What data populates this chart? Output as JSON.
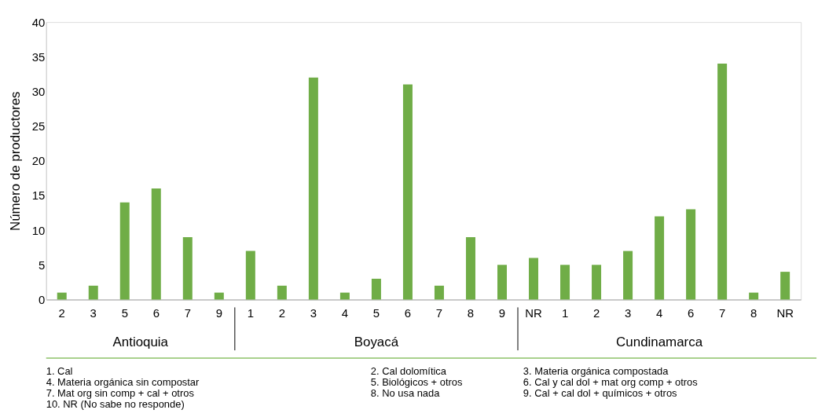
{
  "chart_data": {
    "type": "bar",
    "ylabel": "Número de productores",
    "categories": [
      "2",
      "3",
      "5",
      "6",
      "7",
      "9",
      "1",
      "2",
      "3",
      "4",
      "5",
      "6",
      "7",
      "8",
      "9",
      "NR",
      "1",
      "2",
      "3",
      "4",
      "6",
      "7",
      "8",
      "NR"
    ],
    "values": [
      1,
      2,
      14,
      16,
      9,
      1,
      7,
      2,
      32,
      1,
      3,
      31,
      2,
      9,
      5,
      6,
      5,
      5,
      7,
      12,
      13,
      34,
      1,
      4
    ],
    "color": "#70ad47",
    "ylim": [
      0,
      40
    ],
    "yticks": [
      0,
      5,
      10,
      15,
      20,
      25,
      30,
      35,
      40
    ],
    "grid": false,
    "annotations": [
      "Antioquia",
      "Boyacá",
      "Cundinamarca",
      "1. Cal",
      "2. Cal dolomítica",
      "3. Materia orgánica compostada",
      "4. Materia orgánica sin compostar",
      "5. Biológicos + otros",
      "6. Cal y cal dol + mat org comp + otros",
      "7. Mat org sin comp + cal + otros",
      "8. No usa nada",
      "9. Cal + cal dol + químicos + otros",
      "10. NR (No sabe no responde)"
    ]
  }
}
